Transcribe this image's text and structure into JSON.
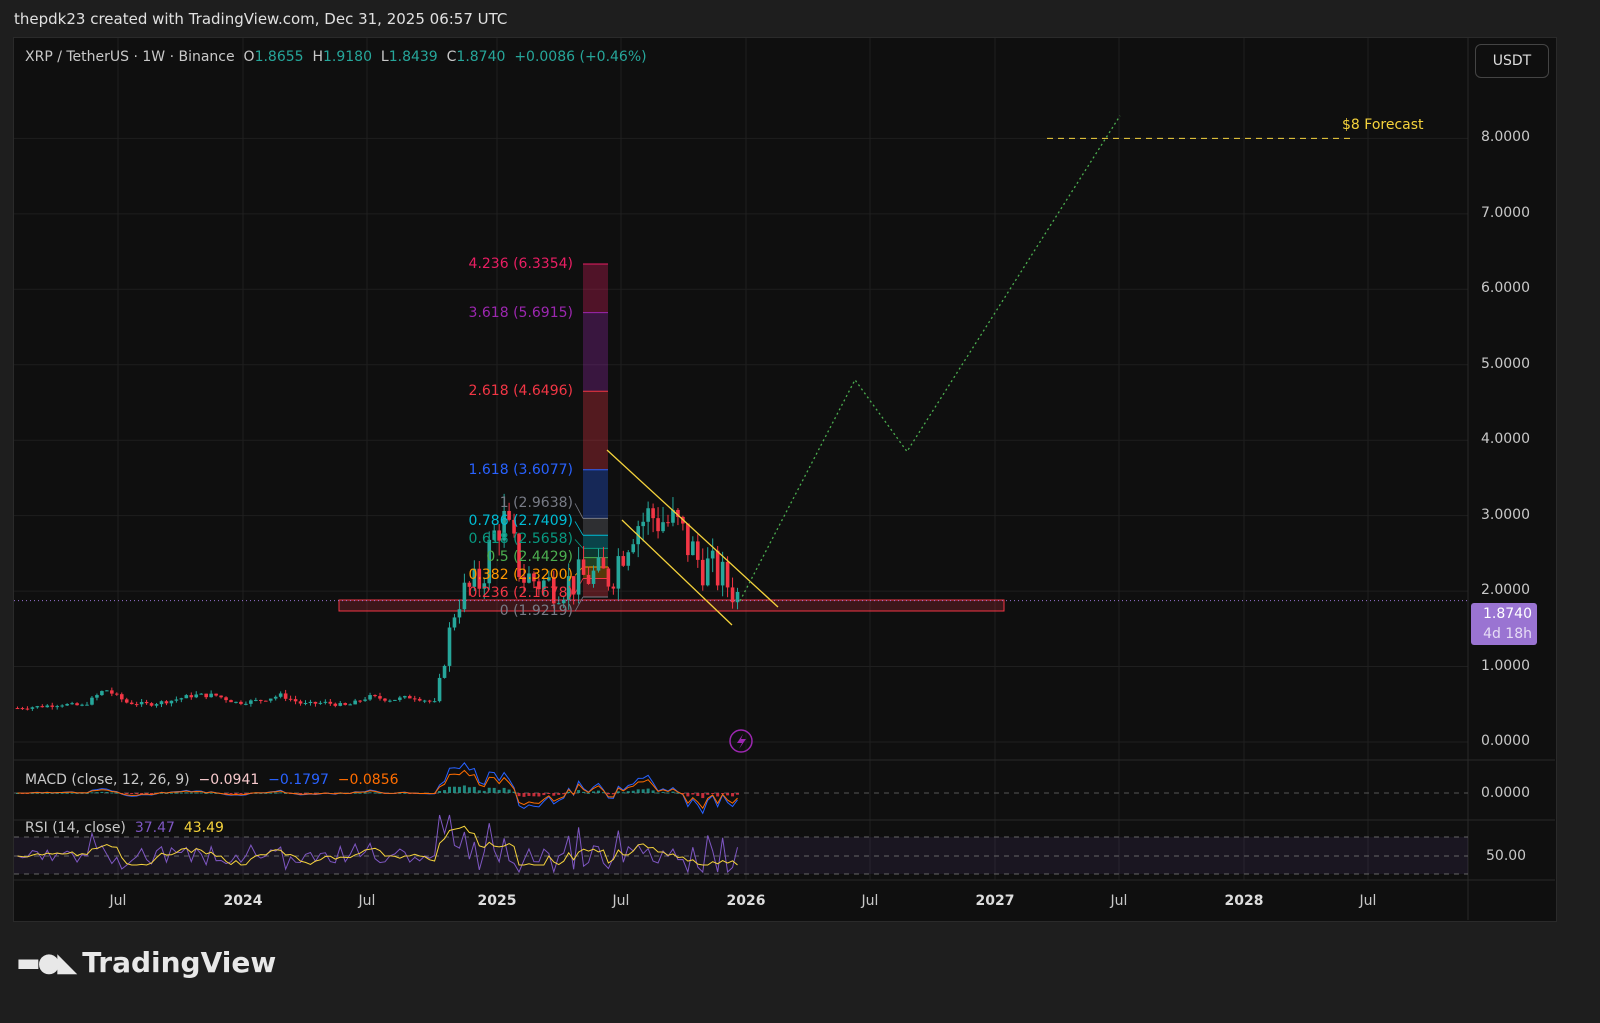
{
  "header": {
    "credit": "thepdk23 created with TradingView.com, Dec 31, 2025 06:57 UTC"
  },
  "legend": {
    "symbol": "XRP / TetherUS · 1W · Binance",
    "o_label": "O",
    "o": "1.8655",
    "h_label": "H",
    "h": "1.9180",
    "l_label": "L",
    "l": "1.8439",
    "c_label": "C",
    "c": "1.8740",
    "change": "+0.0086 (+0.46%)"
  },
  "currency_button": "USDT",
  "last_price": {
    "value": "1.8740",
    "countdown": "4d 18h"
  },
  "forecast_label": "$8 Forecast",
  "macd": {
    "label": "MACD (close, 12, 26, 9)",
    "hist": "−0.0941",
    "macd": "−0.1797",
    "signal": "−0.0856",
    "axis": "0.0000"
  },
  "rsi": {
    "label": "RSI (14, close)",
    "rsi": "37.47",
    "ma": "43.49",
    "axis": "50.00"
  },
  "logo": "TradingView",
  "colors": {
    "up": "#26a69a",
    "down": "#f23645",
    "accent": "#9a74d2"
  },
  "chart_data": {
    "type": "candlestick",
    "y_ticks": [
      "0.0000",
      "1.0000",
      "2.0000",
      "3.0000",
      "4.0000",
      "5.0000",
      "6.0000",
      "7.0000",
      "8.0000"
    ],
    "ylim": [
      0,
      8.5
    ],
    "x_ticks": [
      {
        "label": "Jul",
        "bold": false
      },
      {
        "label": "2024",
        "bold": true
      },
      {
        "label": "Jul",
        "bold": false
      },
      {
        "label": "2025",
        "bold": true
      },
      {
        "label": "Jul",
        "bold": false
      },
      {
        "label": "2026",
        "bold": true
      },
      {
        "label": "Jul",
        "bold": false
      },
      {
        "label": "2027",
        "bold": true
      },
      {
        "label": "Jul",
        "bold": false
      },
      {
        "label": "2028",
        "bold": true
      },
      {
        "label": "Jul",
        "bold": false
      }
    ],
    "monthly_closes_from_mar_2023": [
      0.45,
      0.47,
      0.5,
      0.48,
      0.7,
      0.52,
      0.5,
      0.55,
      0.62,
      0.62,
      0.52,
      0.55,
      0.62,
      0.5,
      0.52,
      0.48,
      0.6,
      0.56,
      0.6,
      0.52,
      1.9,
      2.1,
      3.0,
      2.2,
      2.1,
      2.1,
      2.2,
      2.2,
      2.9,
      3.0,
      2.85,
      2.4,
      2.2,
      1.87
    ],
    "fib_levels": [
      {
        "label": "4.236 (6.3354)",
        "price": 6.3354,
        "color": "#e91e63"
      },
      {
        "label": "3.618 (5.6915)",
        "price": 5.6915,
        "color": "#9c27b0"
      },
      {
        "label": "2.618 (4.6496)",
        "price": 4.6496,
        "color": "#f23645"
      },
      {
        "label": "1.618 (3.6077)",
        "price": 3.6077,
        "color": "#2962ff"
      },
      {
        "label": "1 (2.9638)",
        "price": 2.9638,
        "color": "#787b86"
      },
      {
        "label": "0.786 (2.7409)",
        "price": 2.7409,
        "color": "#00bcd4"
      },
      {
        "label": "0.618 (2.5658)",
        "price": 2.5658,
        "color": "#089981"
      },
      {
        "label": "0.5 (2.4429)",
        "price": 2.4429,
        "color": "#4caf50"
      },
      {
        "label": "0.382 (2.3200)",
        "price": 2.32,
        "color": "#ff9800"
      },
      {
        "label": "0.236 (2.1678)",
        "price": 2.1678,
        "color": "#f23645"
      },
      {
        "label": "0 (1.9219)",
        "price": 1.9219,
        "color": "#787b86"
      }
    ],
    "support_zone": [
      1.75,
      1.9
    ],
    "forecast_path": [
      1.87,
      4.8,
      3.85,
      8.3
    ],
    "forecast_target": 8.0
  }
}
